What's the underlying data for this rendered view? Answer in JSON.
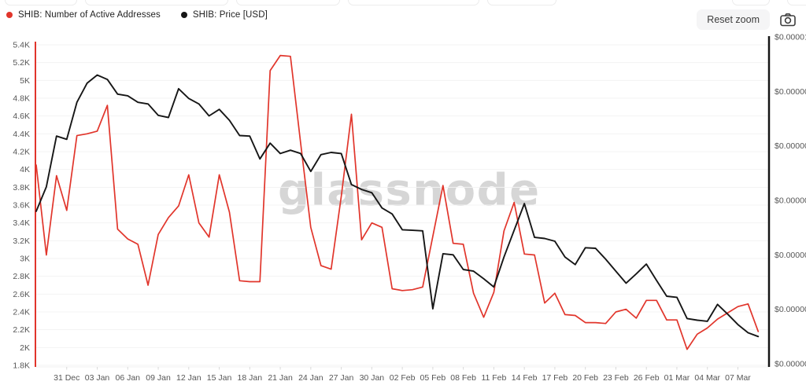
{
  "header": {
    "reset_zoom_label": "Reset zoom",
    "camera_icon": "camera-icon"
  },
  "watermark": "glassnode",
  "chart_data": {
    "type": "line",
    "title": "",
    "xlabel": "",
    "ylabel_left": "Number of Active Addresses",
    "ylabel_right": "Price [USD]",
    "grid": "horizontal-only",
    "legend_position": "top-left",
    "x_tick_labels": [
      "31 Dec",
      "03 Jan",
      "06 Jan",
      "09 Jan",
      "12 Jan",
      "15 Jan",
      "18 Jan",
      "21 Jan",
      "24 Jan",
      "27 Jan",
      "30 Jan",
      "02 Feb",
      "05 Feb",
      "08 Feb",
      "11 Feb",
      "14 Feb",
      "17 Feb",
      "20 Feb",
      "23 Feb",
      "26 Feb",
      "01 Mar",
      "04 Mar",
      "07 Mar"
    ],
    "x_first_tick_index": 3,
    "x_tick_step": 3,
    "left_axis": {
      "color": "#e1352b",
      "label_color": "#565656",
      "max": 5.4,
      "min": 1.8,
      "unit": "K",
      "labels": [
        "5.4K",
        "5.2K",
        "5K",
        "4.8K",
        "4.6K",
        "4.4K",
        "4.2K",
        "4K",
        "3.8K",
        "3.6K",
        "3.4K",
        "3.2K",
        "3K",
        "2.8K",
        "2.6K",
        "2.4K",
        "2.2K",
        "2K",
        "1.8K"
      ]
    },
    "right_axis": {
      "color": "#161616",
      "label_color": "#565656",
      "top_value_e6": 10,
      "step_value_e6": 1,
      "labels": [
        "$0.00001",
        "$0.00000",
        "$0.00000",
        "$0.00000",
        "$0.00000",
        "$0.00000",
        "$0.00000"
      ]
    },
    "series": [
      {
        "name": "SHIB: Number of Active Addresses",
        "color": "#e1352b",
        "axis": "left",
        "unit": "K addresses",
        "values": [
          4.05,
          3.04,
          3.93,
          3.54,
          4.38,
          4.4,
          4.43,
          4.72,
          3.33,
          3.22,
          3.16,
          2.7,
          3.27,
          3.46,
          3.59,
          3.94,
          3.4,
          3.24,
          3.94,
          3.52,
          2.75,
          2.74,
          2.74,
          5.11,
          5.28,
          5.27,
          4.3,
          3.35,
          2.92,
          2.88,
          3.7,
          4.62,
          3.21,
          3.4,
          3.35,
          2.66,
          2.64,
          2.65,
          2.68,
          3.25,
          3.82,
          3.17,
          3.16,
          2.61,
          2.34,
          2.62,
          3.31,
          3.63,
          3.05,
          3.04,
          2.5,
          2.61,
          2.37,
          2.36,
          2.28,
          2.28,
          2.27,
          2.4,
          2.43,
          2.33,
          2.53,
          2.53,
          2.31,
          2.31,
          1.98,
          2.15,
          2.22,
          2.32,
          2.39,
          2.46,
          2.49,
          2.18
        ]
      },
      {
        "name": "SHIB: Price [USD]",
        "color": "#161616",
        "axis": "right",
        "unit": "USD (millionths, estimated from gridlines)",
        "values": [
          6.8,
          7.25,
          8.18,
          8.12,
          8.8,
          9.15,
          9.3,
          9.22,
          8.95,
          8.92,
          8.8,
          8.77,
          8.56,
          8.52,
          9.05,
          8.87,
          8.77,
          8.55,
          8.67,
          8.47,
          8.19,
          8.18,
          7.76,
          8.05,
          7.86,
          7.92,
          7.86,
          7.53,
          7.84,
          7.88,
          7.86,
          7.29,
          7.2,
          7.14,
          6.86,
          6.75,
          6.46,
          6.45,
          6.44,
          5.01,
          6.02,
          6.0,
          5.73,
          5.7,
          5.56,
          5.41,
          5.96,
          6.45,
          6.94,
          6.32,
          6.3,
          6.25,
          5.96,
          5.82,
          6.13,
          6.12,
          5.92,
          5.7,
          5.48,
          5.65,
          5.83,
          5.53,
          5.24,
          5.22,
          4.83,
          4.8,
          4.78,
          5.09,
          4.91,
          4.72,
          4.57,
          4.5
        ]
      }
    ]
  }
}
